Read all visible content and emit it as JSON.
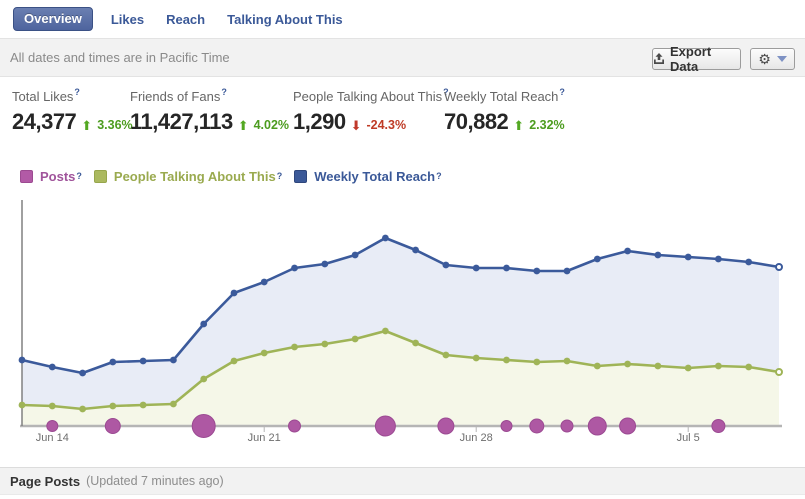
{
  "tabs": [
    {
      "label": "Overview",
      "active": true
    },
    {
      "label": "Likes",
      "active": false
    },
    {
      "label": "Reach",
      "active": false
    },
    {
      "label": "Talking About This",
      "active": false
    }
  ],
  "notice": {
    "text": "All dates and times are in Pacific Time",
    "export_label": "Export Data"
  },
  "icons": {
    "gear": "⚙",
    "up_arrow": "⬆",
    "down_arrow": "⬇",
    "help_glyph": "?"
  },
  "stats": [
    {
      "label": "Total Likes",
      "value": "24,377",
      "delta": "3.36%",
      "direction": "up"
    },
    {
      "label": "Friends of Fans",
      "value": "11,427,113",
      "delta": "4.02%",
      "direction": "up"
    },
    {
      "label": "People Talking About This",
      "value": "1,290",
      "delta": "-24.3%",
      "direction": "down"
    },
    {
      "label": "Weekly Total Reach",
      "value": "70,882",
      "delta": "2.32%",
      "direction": "up"
    }
  ],
  "legend": [
    {
      "label": "Posts",
      "swatch": "#b25aa6",
      "swatch_border": "#9c4a91",
      "text_color": "#a0549b"
    },
    {
      "label": "People Talking About This",
      "swatch": "#abb95f",
      "swatch_border": "#97a64c",
      "text_color": "#9aaa4f"
    },
    {
      "label": "Weekly Total Reach",
      "swatch": "#3b5998",
      "swatch_border": "#2f477c",
      "text_color": "#3b5998"
    }
  ],
  "chart_data": {
    "type": "line",
    "n_points": 26,
    "y_axis_labeled": false,
    "note": "values are relative heights (px above baseline in source chart); y axis has no labels",
    "x_ticks": [
      {
        "index": 1,
        "label": "Jun 14"
      },
      {
        "index": 8,
        "label": "Jun 21"
      },
      {
        "index": 15,
        "label": "Jun 28"
      },
      {
        "index": 22,
        "label": "Jul 5"
      }
    ],
    "series": [
      {
        "name": "Weekly Total Reach",
        "color": "#3b5a9b",
        "fill": "#e8ecf6",
        "values_rel": [
          66,
          59,
          53,
          64,
          65,
          66,
          102,
          133,
          144,
          158,
          162,
          171,
          188,
          176,
          161,
          158,
          158,
          155,
          155,
          167,
          175,
          171,
          169,
          167,
          164,
          159
        ]
      },
      {
        "name": "People Talking About This",
        "color": "#9fb457",
        "fill": "#f5f7e8",
        "values_rel": [
          21,
          20,
          17,
          20,
          21,
          22,
          47,
          65,
          73,
          79,
          82,
          87,
          95,
          83,
          71,
          68,
          66,
          64,
          65,
          60,
          62,
          60,
          58,
          60,
          59,
          54
        ]
      }
    ],
    "posts": {
      "name": "Posts",
      "color": "#ae58a3",
      "stroke": "#9b4a92",
      "points": [
        {
          "index": 1,
          "r": 5.5
        },
        {
          "index": 3,
          "r": 7.5
        },
        {
          "index": 6,
          "r": 11.5
        },
        {
          "index": 9,
          "r": 6
        },
        {
          "index": 12,
          "r": 10
        },
        {
          "index": 14,
          "r": 8
        },
        {
          "index": 16,
          "r": 5.5
        },
        {
          "index": 17,
          "r": 7
        },
        {
          "index": 18,
          "r": 6
        },
        {
          "index": 19,
          "r": 9
        },
        {
          "index": 20,
          "r": 8
        },
        {
          "index": 23,
          "r": 6.5
        }
      ]
    }
  },
  "footer": {
    "title": "Page Posts",
    "updated": "(Updated 7 minutes ago)"
  }
}
